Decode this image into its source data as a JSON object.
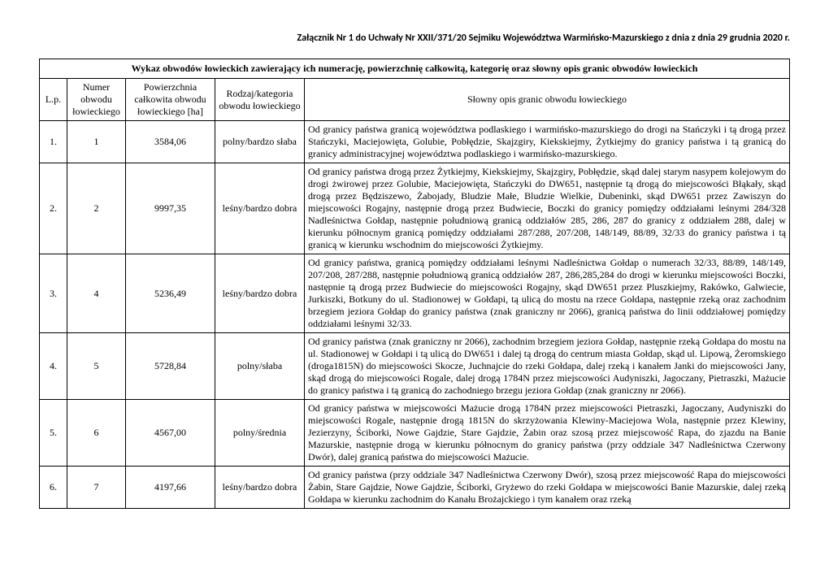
{
  "attachment_line": "Załącznik Nr 1 do Uchwały Nr  XXII/371/20 Sejmiku Województwa Warmińsko-Mazurskiego z dnia z dnia 29 grudnia 2020 r.",
  "table": {
    "title": "Wykaz obwodów łowieckich zawierający ich numerację, powierzchnię całkowitą, kategorię oraz słowny opis granic obwodów łowieckich",
    "columns": {
      "lp": "L.p.",
      "numer": "Numer obwodu łowieckiego",
      "powierzchnia": "Powierzchnia całkowita obwodu łowieckiego [ha]",
      "rodzaj": "Rodzaj/kategoria obwodu łowieckiego",
      "opis": "Słowny opis granic obwodu łowieckiego"
    },
    "rows": [
      {
        "lp": "1.",
        "numer": "1",
        "powierzchnia": "3584,06",
        "rodzaj": "polny/bardzo słaba",
        "opis": "Od granicy państwa granicą województwa podlaskiego i warmińsko-mazurskiego do drogi na Stańczyki i tą drogą przez Stańczyki, Maciejowięta, Golubie, Pobłędzie, Skajzgiry, Kiekskiejmy, Żytkiejmy do granicy państwa i tą granicą do granicy administracyjnej województwa podlaskiego i warmińsko-mazurskiego."
      },
      {
        "lp": "2.",
        "numer": "2",
        "powierzchnia": "9997,35",
        "rodzaj": "leśny/bardzo dobra",
        "opis": "Od granicy państwa drogą przez Żytkiejmy, Kiekskiejmy, Skajzgiry, Pobłędzie, skąd dalej starym nasypem kolejowym do drogi żwirowej przez Golubie, Maciejowięta, Stańczyki do DW651, następnie tą drogą do miejscowości Błąkały, skąd drogą przez Będziszewo, Żabojady, Bludzie Małe, Bludzie Wielkie, Dubeninki, skąd DW651 przez Zawiszyn do miejscowości Rogajny, następnie drogą przez Budwiecie, Boczki do granicy pomiędzy oddziałami leśnymi 284/328 Nadleśnictwa Gołdap, następnie południową granicą oddziałów 285, 286, 287 do granicy z oddziałem 288, dalej w kierunku północnym granicą pomiędzy oddziałami 287/288, 207/208, 148/149, 88/89, 32/33 do granicy państwa i tą granicą w kierunku wschodnim do miejscowości Żytkiejmy."
      },
      {
        "lp": "3.",
        "numer": "4",
        "powierzchnia": "5236,49",
        "rodzaj": "leśny/bardzo dobra",
        "opis": "Od granicy państwa, granicą pomiędzy oddziałami leśnymi Nadleśnictwa Gołdap o numerach 32/33, 88/89, 148/149, 207/208, 287/288, następnie południową granicą oddziałów 287, 286,285,284 do drogi w kierunku miejscowości Boczki, następnie tą drogą przez Budwiecie do miejscowości Rogajny, skąd DW651 przez Pluszkiejmy, Rakówko, Galwiecie, Jurkiszki, Botkuny do ul. Stadionowej w Gołdapi, tą ulicą do mostu na rzece Gołdapa, następnie rzeką oraz zachodnim brzegiem jeziora Gołdap do granicy państwa (znak graniczny nr 2066), granicą państwa do linii oddziałowej pomiędzy oddziałami leśnymi 32/33."
      },
      {
        "lp": "4.",
        "numer": "5",
        "powierzchnia": "5728,84",
        "rodzaj": "polny/słaba",
        "opis": "Od granicy państwa (znak graniczny nr 2066), zachodnim brzegiem jeziora Gołdap, następnie rzeką Gołdapa do mostu na ul. Stadionowej w Gołdapi i tą ulicą do DW651 i dalej tą drogą do centrum miasta Gołdap, skąd ul. Lipową, Żeromskiego (droga1815N) do miejscowości Skocze, Juchnajcie do rzeki Gołdapa, dalej rzeką i kanałem Janki do miejscowości Jany, skąd drogą do miejscowości Rogale, dalej drogą 1784N przez miejscowości Audyniszki, Jagoczany, Pietraszki, Mażucie do granicy państwa i tą granicą do zachodniego brzegu jeziora Gołdap (znak graniczny nr 2066)."
      },
      {
        "lp": "5.",
        "numer": "6",
        "powierzchnia": "4567,00",
        "rodzaj": "polny/średnia",
        "opis": "Od granicy państwa w miejscowości Mażucie drogą 1784N przez miejscowości Pietraszki, Jagoczany, Audyniszki do miejscowości Rogale, następnie drogą 1815N do skrzyżowania Klewiny-Maciejowa Wola, następnie przez Klewiny, Jezierzyny, Ściborki, Nowe Gajdzie, Stare Gajdzie, Żabin oraz szosą przez miejscowość Rapa, do zjazdu na Banie Mazurskie, następnie drogą w kierunku północnym do granicy państwa (przy oddziale 347 Nadleśnictwa Czerwony Dwór), dalej granicą państwa do miejscowości Mażucie."
      },
      {
        "lp": "6.",
        "numer": "7",
        "powierzchnia": "4197,66",
        "rodzaj": "leśny/bardzo dobra",
        "opis": "Od granicy państwa (przy oddziale 347 Nadleśnictwa Czerwony Dwór), szosą przez miejscowość Rapa do miejscowości Żabin, Stare Gajdzie, Nowe Gajdzie, Ściborki, Gryżewo do rzeki Gołdapa w miejscowości Banie Mazurskie, dalej rzeką Gołdapa w kierunku zachodnim do Kanału Brożajckiego i tym kanałem oraz rzeką"
      }
    ]
  }
}
